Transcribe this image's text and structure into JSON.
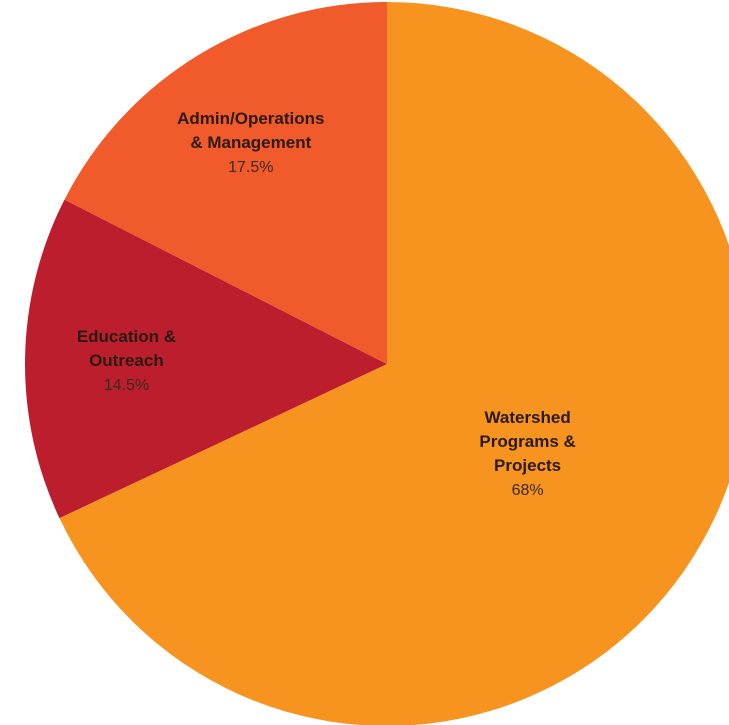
{
  "chart_data": {
    "type": "pie",
    "title": "",
    "start": "top",
    "direction": "clockwise",
    "slices": [
      {
        "name_lines": [
          "Watershed",
          "Programs &",
          "Projects"
        ],
        "value": 68,
        "value_label": "68%",
        "color": "#f7941f"
      },
      {
        "name_lines": [
          "Education &",
          "Outreach"
        ],
        "value": 14.5,
        "value_label": "14.5%",
        "color": "#bc1e2d"
      },
      {
        "name_lines": [
          "Admin/Operations",
          "& Management"
        ],
        "value": 17.5,
        "value_label": "17.5%",
        "color": "#f15a2b"
      }
    ]
  }
}
